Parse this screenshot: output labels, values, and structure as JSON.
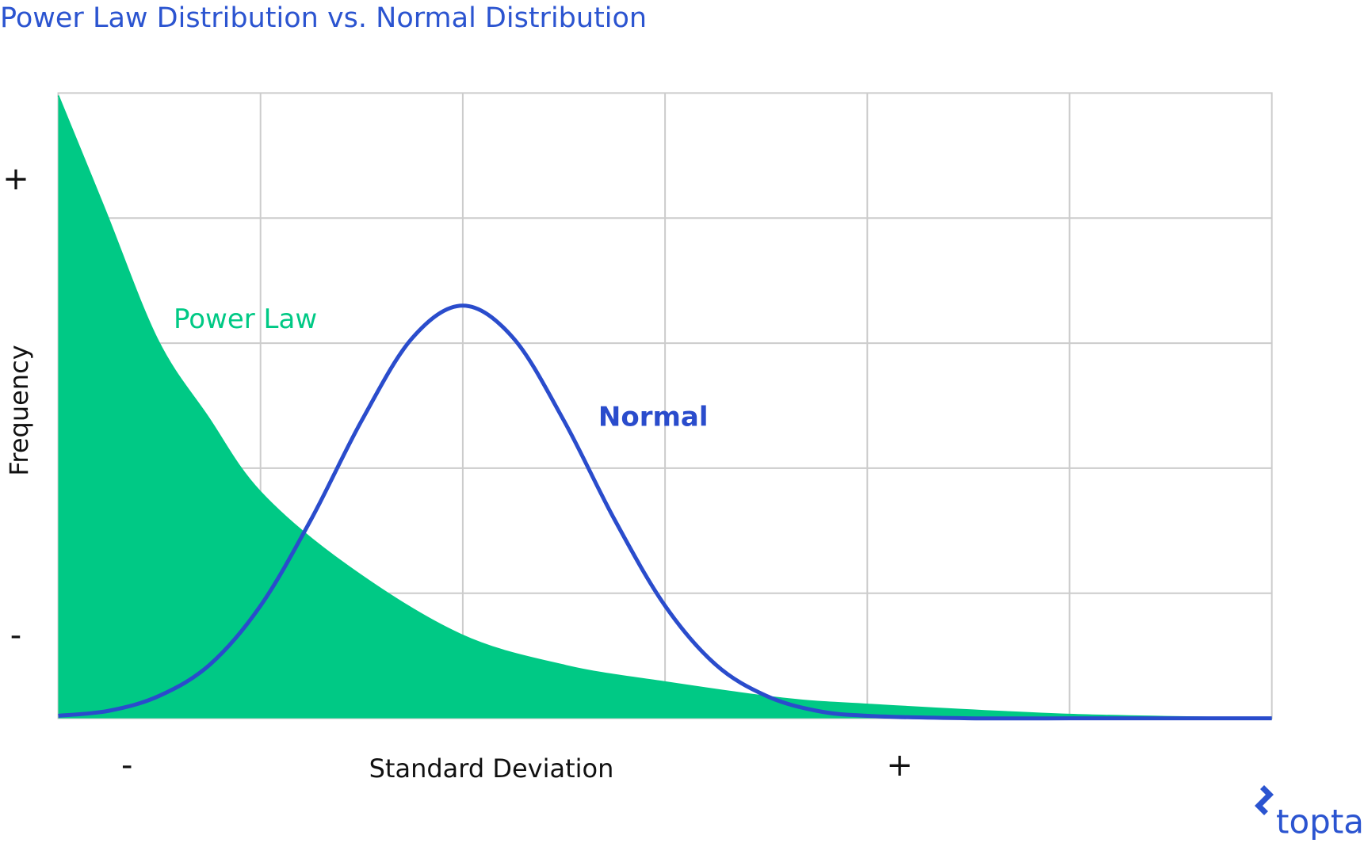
{
  "chart_data": {
    "type": "area",
    "title": "Power Law Distribution vs. Normal Distribution",
    "x_label": "Standard Deviation",
    "y_label": "Frequency",
    "logo_text": "toptal",
    "xlim": [
      0,
      6
    ],
    "ylim": [
      0,
      5
    ],
    "xticks": [
      {
        "value": 0.34,
        "label": "-"
      },
      {
        "value": 4.16,
        "label": "+"
      }
    ],
    "yticks": [
      {
        "value": 0.65,
        "label": "-"
      },
      {
        "value": 4.3,
        "label": "+"
      }
    ],
    "xgrid": [
      1,
      2,
      3,
      4,
      5
    ],
    "ygrid": [
      1,
      2,
      3,
      4
    ],
    "grid": true,
    "series": [
      {
        "name": "Power Law",
        "type": "area",
        "color": "#00c985",
        "x": [
          0,
          0.23,
          0.49,
          0.74,
          1.0,
          1.43,
          1.99,
          2.51,
          3.0,
          3.58,
          4.01,
          5.0,
          6.0
        ],
        "values": [
          4.98,
          4.07,
          3.03,
          2.41,
          1.81,
          1.22,
          0.67,
          0.42,
          0.29,
          0.16,
          0.11,
          0.03,
          0
        ]
      },
      {
        "name": "Normal",
        "type": "line",
        "color": "#2a4ccc",
        "x": [
          0,
          0.25,
          0.5,
          0.75,
          1.0,
          1.25,
          1.5,
          1.75,
          2.0,
          2.25,
          2.5,
          2.75,
          3.0,
          3.25,
          3.5,
          3.75,
          4.0,
          4.5,
          5.0,
          5.5,
          6.0
        ],
        "values": [
          0.02,
          0.06,
          0.18,
          0.43,
          0.9,
          1.59,
          2.38,
          3.04,
          3.3,
          3.04,
          2.38,
          1.59,
          0.9,
          0.43,
          0.18,
          0.06,
          0.02,
          0,
          0,
          0,
          0
        ]
      }
    ]
  }
}
